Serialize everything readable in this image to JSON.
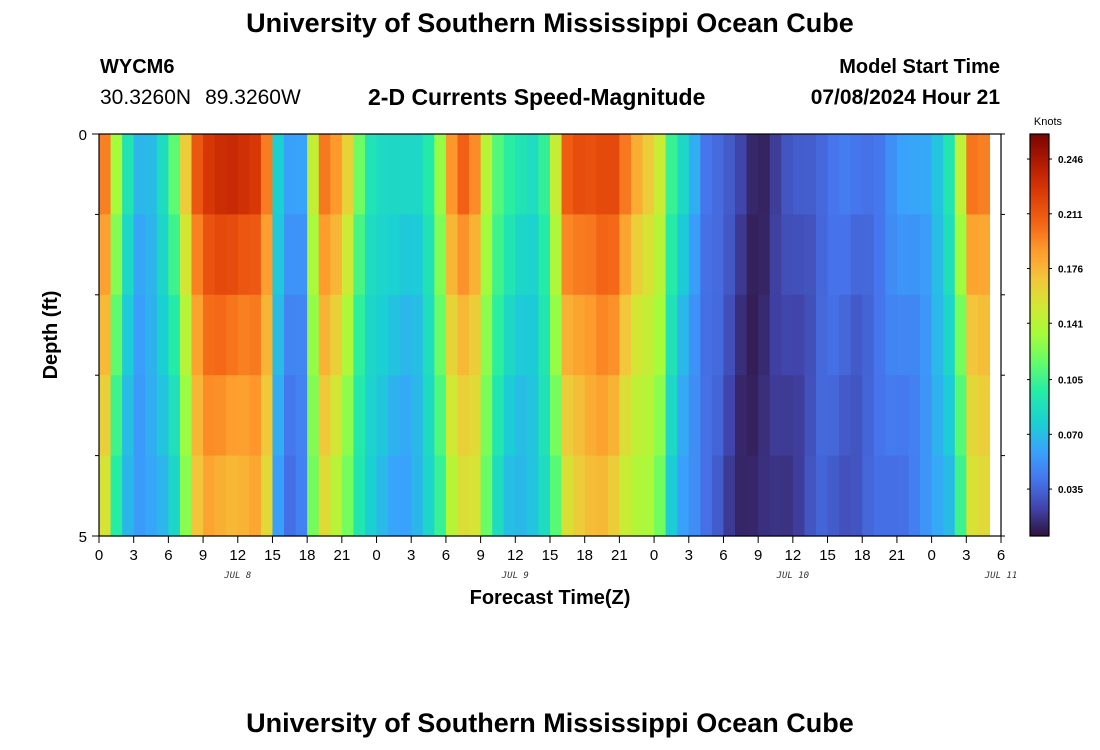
{
  "header": {
    "title": "University of Southern Mississippi Ocean Cube",
    "station": "WYCM6",
    "lat": "30.3260N",
    "lon": "89.3260W",
    "subtitle": "2-D Currents Speed-Magnitude",
    "model_label": "Model Start Time",
    "model_date": "07/08/2024",
    "model_hour": "Hour 21"
  },
  "footer": {
    "title": "University of Southern Mississippi Ocean Cube"
  },
  "chart_data": {
    "type": "heatmap",
    "title": "2-D Currents Speed-Magnitude",
    "xlabel": "Forecast Time(Z)",
    "ylabel": "Depth (ft)",
    "x_ticks": [
      "0",
      "3",
      "6",
      "9",
      "12",
      "15",
      "18",
      "21",
      "0",
      "3",
      "6",
      "9",
      "12",
      "15",
      "18",
      "21",
      "0",
      "3",
      "6",
      "9",
      "12",
      "15",
      "18",
      "21",
      "0",
      "3",
      "6"
    ],
    "day_labels": [
      {
        "label": "JUL 8",
        "hour": 12
      },
      {
        "label": "JUL 9",
        "hour": 36
      },
      {
        "label": "JUL 10",
        "hour": 60
      },
      {
        "label": "JUL 11",
        "hour": 78
      }
    ],
    "xlim": [
      0,
      78
    ],
    "y_ticks": [
      "0",
      "5"
    ],
    "ylim": [
      0,
      5
    ],
    "colorbar": {
      "unit": "Knots",
      "ticks": [
        0.035,
        0.07,
        0.105,
        0.141,
        0.176,
        0.211,
        0.246
      ],
      "tick_labels": [
        "0.035",
        "0.070",
        "0.105",
        "0.141",
        "0.176",
        "0.211",
        "0.246"
      ],
      "range": [
        0.005,
        0.262
      ]
    },
    "depth_bins": [
      0.5,
      1.5,
      2.5,
      3.5,
      4.5
    ],
    "surface_speed_by_hour": [
      0.196,
      0.13,
      0.09,
      0.07,
      0.073,
      0.085,
      0.11,
      0.165,
      0.215,
      0.23,
      0.23,
      0.23,
      0.23,
      0.23,
      0.2,
      0.075,
      0.055,
      0.06,
      0.15,
      0.2,
      0.185,
      0.16,
      0.12,
      0.095,
      0.085,
      0.08,
      0.08,
      0.085,
      0.1,
      0.13,
      0.185,
      0.205,
      0.195,
      0.145,
      0.11,
      0.095,
      0.09,
      0.09,
      0.105,
      0.145,
      0.205,
      0.215,
      0.218,
      0.22,
      0.215,
      0.195,
      0.18,
      0.17,
      0.15,
      0.1,
      0.08,
      0.065,
      0.045,
      0.038,
      0.028,
      0.02,
      0.015,
      0.015,
      0.02,
      0.025,
      0.03,
      0.035,
      0.04,
      0.04,
      0.04,
      0.04,
      0.043,
      0.045,
      0.05,
      0.055,
      0.06,
      0.065,
      0.075,
      0.09,
      0.14,
      0.2,
      0.2
    ],
    "depth_scale": [
      1.0,
      0.93,
      0.87,
      0.82,
      0.78
    ]
  }
}
